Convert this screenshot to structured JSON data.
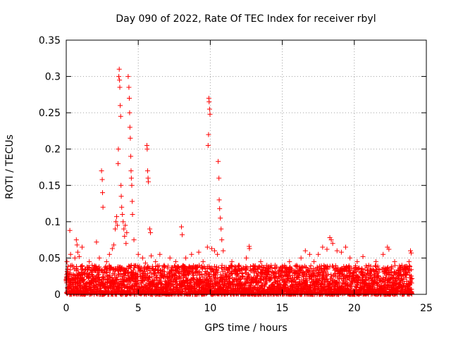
{
  "chart_data": {
    "type": "scatter",
    "title": "Day 090 of 2022, Rate Of TEC Index for receiver rbyl",
    "xlabel": "GPS time / hours",
    "ylabel": "ROTI / TECUs",
    "xlim": [
      0,
      25
    ],
    "ylim": [
      0,
      0.35
    ],
    "x_ticks": [
      0,
      5,
      10,
      15,
      20,
      25
    ],
    "x_tick_labels": [
      "0",
      "5",
      "10",
      "15",
      "20",
      "25"
    ],
    "y_ticks": [
      0,
      0.05,
      0.1,
      0.15,
      0.2,
      0.25,
      0.3,
      0.35
    ],
    "y_tick_labels": [
      "0",
      "0.05",
      "0.1",
      "0.15",
      "0.2",
      "0.25",
      "0.3",
      "0.35"
    ],
    "grid": true,
    "marker": "+",
    "color": "#ff0000",
    "series": [
      {
        "points": [
          [
            0.05,
            0.045
          ],
          [
            0.1,
            0.03
          ],
          [
            0.2,
            0.025
          ],
          [
            0.25,
            0.088
          ],
          [
            0.3,
            0.055
          ],
          [
            0.4,
            0.04
          ],
          [
            0.6,
            0.05
          ],
          [
            0.7,
            0.075
          ],
          [
            0.75,
            0.068
          ],
          [
            0.8,
            0.058
          ],
          [
            0.9,
            0.052
          ],
          [
            1.1,
            0.065
          ],
          [
            1.3,
            0.035
          ],
          [
            1.6,
            0.045
          ],
          [
            1.8,
            0.04
          ],
          [
            2.1,
            0.072
          ],
          [
            2.3,
            0.05
          ],
          [
            2.45,
            0.17
          ],
          [
            2.5,
            0.158
          ],
          [
            2.52,
            0.14
          ],
          [
            2.55,
            0.12
          ],
          [
            2.8,
            0.045
          ],
          [
            3.0,
            0.055
          ],
          [
            3.2,
            0.063
          ],
          [
            3.3,
            0.068
          ],
          [
            3.4,
            0.09
          ],
          [
            3.45,
            0.1
          ],
          [
            3.5,
            0.107
          ],
          [
            3.55,
            0.095
          ],
          [
            3.6,
            0.18
          ],
          [
            3.62,
            0.2
          ],
          [
            3.65,
            0.3
          ],
          [
            3.68,
            0.31
          ],
          [
            3.7,
            0.295
          ],
          [
            3.72,
            0.285
          ],
          [
            3.75,
            0.26
          ],
          [
            3.78,
            0.245
          ],
          [
            3.8,
            0.15
          ],
          [
            3.82,
            0.135
          ],
          [
            3.85,
            0.12
          ],
          [
            3.9,
            0.11
          ],
          [
            3.95,
            0.1
          ],
          [
            4.0,
            0.09
          ],
          [
            4.05,
            0.08
          ],
          [
            4.1,
            0.095
          ],
          [
            4.15,
            0.07
          ],
          [
            4.2,
            0.085
          ],
          [
            4.3,
            0.3
          ],
          [
            4.35,
            0.285
          ],
          [
            4.38,
            0.27
          ],
          [
            4.4,
            0.25
          ],
          [
            4.42,
            0.23
          ],
          [
            4.45,
            0.215
          ],
          [
            4.48,
            0.19
          ],
          [
            4.5,
            0.17
          ],
          [
            4.52,
            0.16
          ],
          [
            4.55,
            0.15
          ],
          [
            4.58,
            0.128
          ],
          [
            4.6,
            0.11
          ],
          [
            4.7,
            0.075
          ],
          [
            5.0,
            0.055
          ],
          [
            5.3,
            0.05
          ],
          [
            5.5,
            0.043
          ],
          [
            5.6,
            0.205
          ],
          [
            5.62,
            0.2
          ],
          [
            5.65,
            0.17
          ],
          [
            5.68,
            0.16
          ],
          [
            5.7,
            0.155
          ],
          [
            5.8,
            0.09
          ],
          [
            5.85,
            0.085
          ],
          [
            5.9,
            0.053
          ],
          [
            6.2,
            0.045
          ],
          [
            6.5,
            0.055
          ],
          [
            6.8,
            0.04
          ],
          [
            7.2,
            0.05
          ],
          [
            7.6,
            0.045
          ],
          [
            8.0,
            0.093
          ],
          [
            8.05,
            0.082
          ],
          [
            8.3,
            0.05
          ],
          [
            8.7,
            0.055
          ],
          [
            9.2,
            0.058
          ],
          [
            9.5,
            0.045
          ],
          [
            9.8,
            0.065
          ],
          [
            9.85,
            0.205
          ],
          [
            9.88,
            0.22
          ],
          [
            9.9,
            0.27
          ],
          [
            9.92,
            0.265
          ],
          [
            9.95,
            0.255
          ],
          [
            9.98,
            0.248
          ],
          [
            10.1,
            0.063
          ],
          [
            10.3,
            0.06
          ],
          [
            10.5,
            0.055
          ],
          [
            10.55,
            0.183
          ],
          [
            10.6,
            0.16
          ],
          [
            10.62,
            0.13
          ],
          [
            10.65,
            0.118
          ],
          [
            10.7,
            0.105
          ],
          [
            10.75,
            0.09
          ],
          [
            10.8,
            0.075
          ],
          [
            10.9,
            0.06
          ],
          [
            11.5,
            0.045
          ],
          [
            12.0,
            0.04
          ],
          [
            12.5,
            0.05
          ],
          [
            12.7,
            0.066
          ],
          [
            12.72,
            0.063
          ],
          [
            13.5,
            0.045
          ],
          [
            14.0,
            0.035
          ],
          [
            14.5,
            0.04
          ],
          [
            15.0,
            0.035
          ],
          [
            15.5,
            0.045
          ],
          [
            16.0,
            0.04
          ],
          [
            16.3,
            0.05
          ],
          [
            16.6,
            0.06
          ],
          [
            16.9,
            0.055
          ],
          [
            17.2,
            0.045
          ],
          [
            17.5,
            0.055
          ],
          [
            17.8,
            0.065
          ],
          [
            18.1,
            0.062
          ],
          [
            18.3,
            0.078
          ],
          [
            18.4,
            0.075
          ],
          [
            18.5,
            0.07
          ],
          [
            18.8,
            0.06
          ],
          [
            19.1,
            0.058
          ],
          [
            19.4,
            0.065
          ],
          [
            19.7,
            0.05
          ],
          [
            20.2,
            0.045
          ],
          [
            20.6,
            0.052
          ],
          [
            21.0,
            0.04
          ],
          [
            21.5,
            0.045
          ],
          [
            22.0,
            0.055
          ],
          [
            22.3,
            0.065
          ],
          [
            22.4,
            0.062
          ],
          [
            22.8,
            0.045
          ],
          [
            23.3,
            0.04
          ],
          [
            23.8,
            0.045
          ],
          [
            23.9,
            0.06
          ],
          [
            23.95,
            0.057
          ]
        ],
        "background_band": {
          "x_range": [
            0,
            24.0
          ],
          "typical_max": 0.04,
          "min": 0.0
        }
      }
    ]
  }
}
